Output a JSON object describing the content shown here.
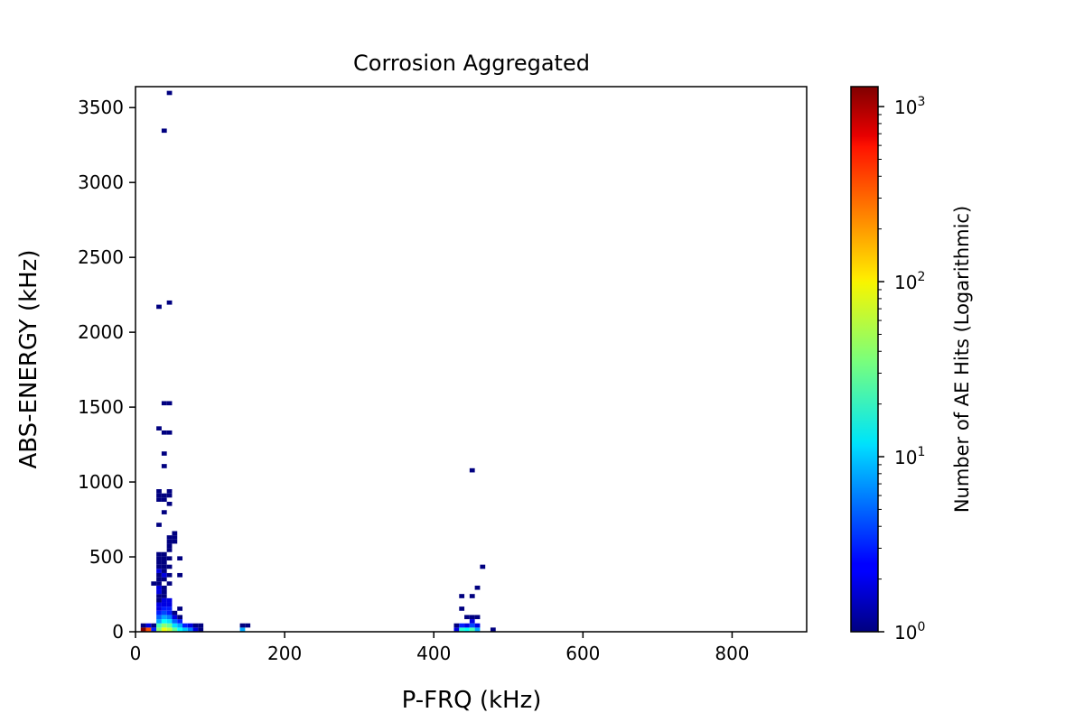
{
  "chart_data": {
    "type": "heatmap",
    "title": "Corrosion Aggregated",
    "xlabel": "P-FRQ (kHz)",
    "ylabel": "ABS-ENERGY (kHz)",
    "xlim": [
      0,
      900
    ],
    "ylim": [
      0,
      3640
    ],
    "x_ticks": [
      0,
      200,
      400,
      600,
      800
    ],
    "y_ticks": [
      0,
      500,
      1000,
      1500,
      2000,
      2500,
      3000,
      3500
    ],
    "bin_width": 7,
    "bin_height": 28,
    "colormap": "jet",
    "colorbar": {
      "label": "Number of AE Hits (Logarithmic)",
      "scale": "log",
      "range": [
        1,
        1300
      ],
      "tick_values": [
        1,
        10,
        100,
        1000
      ],
      "tick_labels": [
        {
          "base": "10",
          "exp": "0"
        },
        {
          "base": "10",
          "exp": "1"
        },
        {
          "base": "10",
          "exp": "2"
        },
        {
          "base": "10",
          "exp": "3"
        }
      ]
    },
    "bins": [
      [
        7,
        0,
        1300
      ],
      [
        7,
        28,
        1
      ],
      [
        14,
        0,
        300
      ],
      [
        14,
        28,
        2
      ],
      [
        21,
        0,
        3
      ],
      [
        21,
        28,
        1
      ],
      [
        28,
        0,
        40
      ],
      [
        28,
        28,
        25
      ],
      [
        28,
        56,
        8
      ],
      [
        28,
        84,
        5
      ],
      [
        28,
        112,
        3
      ],
      [
        28,
        140,
        2
      ],
      [
        28,
        168,
        2
      ],
      [
        28,
        196,
        1
      ],
      [
        28,
        224,
        1
      ],
      [
        28,
        252,
        2
      ],
      [
        28,
        280,
        2
      ],
      [
        35,
        0,
        80
      ],
      [
        35,
        28,
        40
      ],
      [
        35,
        56,
        15
      ],
      [
        35,
        84,
        8
      ],
      [
        35,
        112,
        4
      ],
      [
        35,
        140,
        3
      ],
      [
        35,
        168,
        2
      ],
      [
        35,
        196,
        2
      ],
      [
        35,
        224,
        1
      ],
      [
        35,
        252,
        1
      ],
      [
        35,
        280,
        1
      ],
      [
        42,
        0,
        60
      ],
      [
        42,
        28,
        30
      ],
      [
        42,
        56,
        12
      ],
      [
        42,
        84,
        6
      ],
      [
        42,
        112,
        3
      ],
      [
        42,
        140,
        3
      ],
      [
        42,
        168,
        2
      ],
      [
        42,
        196,
        2
      ],
      [
        49,
        0,
        30
      ],
      [
        49,
        28,
        12
      ],
      [
        49,
        56,
        5
      ],
      [
        49,
        84,
        2
      ],
      [
        49,
        112,
        1
      ],
      [
        56,
        0,
        15
      ],
      [
        56,
        28,
        8
      ],
      [
        56,
        56,
        3
      ],
      [
        56,
        84,
        1
      ],
      [
        56,
        140,
        1
      ],
      [
        63,
        0,
        10
      ],
      [
        63,
        28,
        3
      ],
      [
        70,
        0,
        6
      ],
      [
        70,
        28,
        2
      ],
      [
        77,
        0,
        2
      ],
      [
        77,
        28,
        1
      ],
      [
        84,
        0,
        1
      ],
      [
        84,
        28,
        1
      ],
      [
        21,
        308,
        1
      ],
      [
        28,
        308,
        1
      ],
      [
        28,
        336,
        1
      ],
      [
        28,
        364,
        1
      ],
      [
        28,
        392,
        2
      ],
      [
        28,
        420,
        1
      ],
      [
        28,
        448,
        1
      ],
      [
        28,
        476,
        1
      ],
      [
        28,
        504,
        1
      ],
      [
        35,
        336,
        1
      ],
      [
        35,
        364,
        2
      ],
      [
        35,
        392,
        1
      ],
      [
        35,
        420,
        1
      ],
      [
        35,
        448,
        1
      ],
      [
        35,
        476,
        1
      ],
      [
        35,
        504,
        1
      ],
      [
        42,
        308,
        1
      ],
      [
        42,
        364,
        1
      ],
      [
        42,
        420,
        1
      ],
      [
        42,
        476,
        1
      ],
      [
        42,
        532,
        1
      ],
      [
        42,
        560,
        1
      ],
      [
        42,
        588,
        1
      ],
      [
        42,
        616,
        1
      ],
      [
        49,
        588,
        1
      ],
      [
        49,
        616,
        1
      ],
      [
        49,
        644,
        1
      ],
      [
        56,
        364,
        1
      ],
      [
        56,
        476,
        1
      ],
      [
        28,
        700,
        1
      ],
      [
        28,
        868,
        1
      ],
      [
        28,
        896,
        1
      ],
      [
        28,
        924,
        1
      ],
      [
        35,
        784,
        1
      ],
      [
        35,
        868,
        1
      ],
      [
        35,
        896,
        1
      ],
      [
        42,
        840,
        1
      ],
      [
        42,
        896,
        1
      ],
      [
        42,
        924,
        1
      ],
      [
        35,
        1092,
        1
      ],
      [
        35,
        1176,
        1
      ],
      [
        28,
        1344,
        1
      ],
      [
        35,
        1316,
        1
      ],
      [
        42,
        1316,
        1
      ],
      [
        35,
        1512,
        1
      ],
      [
        42,
        1512,
        1
      ],
      [
        28,
        2156,
        1
      ],
      [
        42,
        2184,
        1
      ],
      [
        35,
        3332,
        1
      ],
      [
        42,
        3584,
        1
      ],
      [
        140,
        0,
        8
      ],
      [
        140,
        28,
        1
      ],
      [
        147,
        28,
        1
      ],
      [
        427,
        0,
        2
      ],
      [
        427,
        28,
        1
      ],
      [
        434,
        0,
        20
      ],
      [
        434,
        28,
        3
      ],
      [
        441,
        0,
        15
      ],
      [
        441,
        28,
        2
      ],
      [
        448,
        0,
        25
      ],
      [
        448,
        28,
        4
      ],
      [
        448,
        56,
        2
      ],
      [
        448,
        84,
        1
      ],
      [
        455,
        0,
        8
      ],
      [
        455,
        28,
        2
      ],
      [
        455,
        84,
        1
      ],
      [
        441,
        84,
        1
      ],
      [
        434,
        140,
        1
      ],
      [
        434,
        224,
        1
      ],
      [
        448,
        224,
        1
      ],
      [
        455,
        280,
        1
      ],
      [
        462,
        420,
        1
      ],
      [
        448,
        1064,
        1
      ],
      [
        476,
        0,
        1
      ]
    ]
  }
}
